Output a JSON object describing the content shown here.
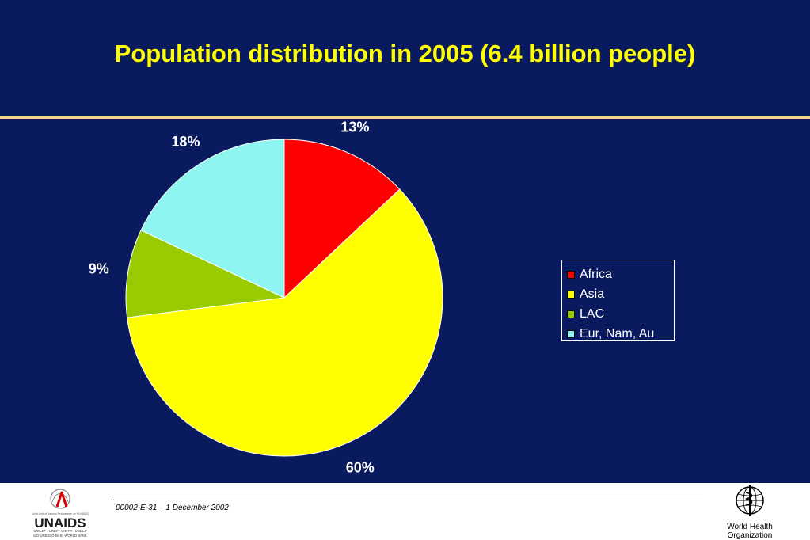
{
  "title": "Population distribution in 2005 (6.4 billion people)",
  "chart_data": {
    "type": "pie",
    "title": "Population distribution in 2005 (6.4 billion people)",
    "slices": [
      {
        "label": "Africa",
        "value": 13,
        "display": "13%",
        "color": "#ff0000"
      },
      {
        "label": "Asia",
        "value": 60,
        "display": "60%",
        "color": "#ffff00"
      },
      {
        "label": "LAC",
        "value": 9,
        "display": "9%",
        "color": "#99cc00"
      },
      {
        "label": "Eur, Nam, Au",
        "value": 18,
        "display": "18%",
        "color": "#8ef5f0"
      }
    ],
    "legend_position": "right"
  },
  "footer": {
    "reference": "00002-E-31 – 1 December 2002"
  },
  "logos": {
    "unaids": {
      "name": "UNAIDS",
      "small_text": "UNICEF · UNDP · UNFPA · UNDCP",
      "small_text2": "ILO·UNESCO·WHO·WORLD BANK",
      "tagline": "Joint United Nations Programme on HIV/AIDS"
    },
    "who": {
      "line1": "World Health",
      "line2": "Organization"
    }
  },
  "colors": {
    "background": "#0a1a5e",
    "title": "#ffff00",
    "rule": "#f2d48a"
  }
}
